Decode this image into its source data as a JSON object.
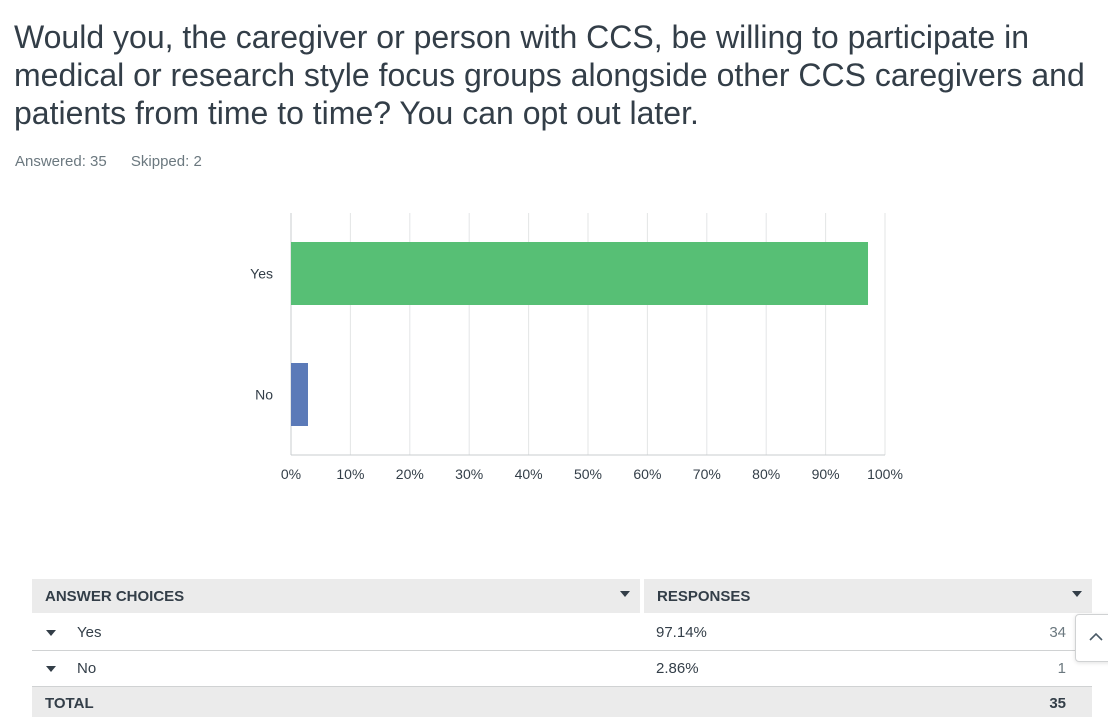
{
  "question": {
    "text": "Would you, the caregiver or person with CCS, be willing to participate in medical or research style focus groups alongside other CCS caregivers and patients from time to time? You can opt out later."
  },
  "stats": {
    "answered": "Answered: 35",
    "skipped": "Skipped: 2"
  },
  "chart_data": {
    "type": "bar",
    "orientation": "horizontal",
    "categories": [
      "Yes",
      "No"
    ],
    "values": [
      97.14,
      2.86
    ],
    "colors": [
      "#57bf75",
      "#5b7ab8"
    ],
    "xlim": [
      0,
      100
    ],
    "x_ticks": [
      "0%",
      "10%",
      "20%",
      "30%",
      "40%",
      "50%",
      "60%",
      "70%",
      "80%",
      "90%",
      "100%"
    ],
    "grid": true
  },
  "table": {
    "headers": {
      "choices": "ANSWER CHOICES",
      "responses": "RESPONSES"
    },
    "rows": [
      {
        "choice": "Yes",
        "percent": "97.14%",
        "count": "34"
      },
      {
        "choice": "No",
        "percent": "2.86%",
        "count": "1"
      }
    ],
    "total": {
      "label": "TOTAL",
      "count": "35"
    }
  },
  "icons": {
    "scroll_top": "chevron-up-icon",
    "sort": "caret-down-icon",
    "row_expand": "caret-down-icon"
  }
}
